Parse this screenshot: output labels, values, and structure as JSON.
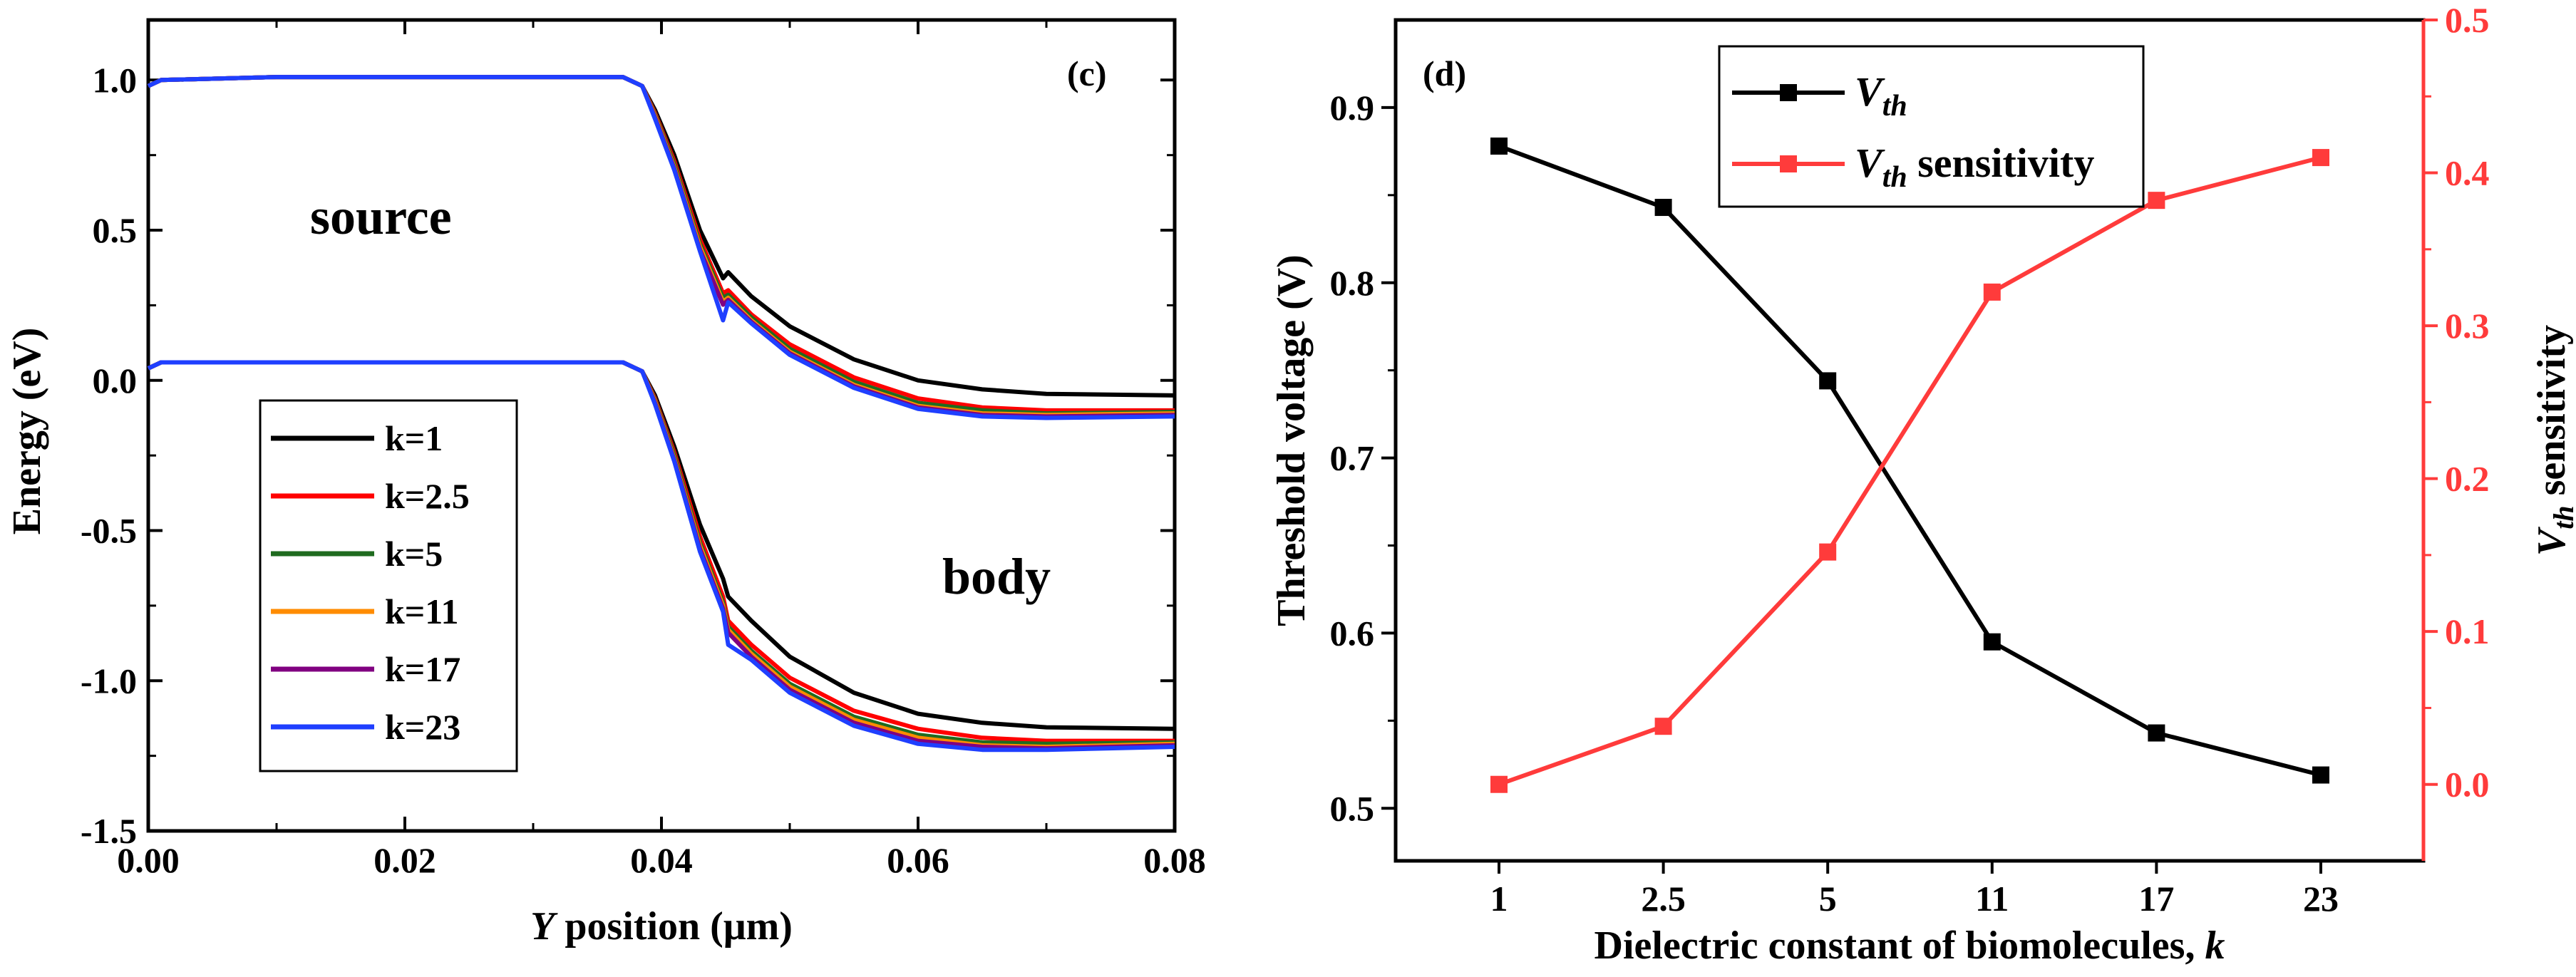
{
  "chart_data": [
    {
      "type": "line",
      "panel_label": "(c)",
      "xlabel_var": "Y",
      "xlabel_rest": " position (μm)",
      "ylabel": "Energy (eV)",
      "xlim": [
        0,
        0.08
      ],
      "ylim": [
        -1.5,
        1.2
      ],
      "x_ticks": [
        "0.00",
        "0.02",
        "0.04",
        "0.06",
        "0.08"
      ],
      "y_ticks": [
        "-1.5",
        "-1.0",
        "-0.5",
        "0.0",
        "0.5",
        "1.0"
      ],
      "annotations": {
        "source": "source",
        "body": "body"
      },
      "legend_location": "center-left",
      "series": [
        {
          "name": "k=1",
          "color": "#000000",
          "conduction": [
            [
              0,
              0.98
            ],
            [
              0.001,
              1.0
            ],
            [
              0.01,
              1.01
            ],
            [
              0.037,
              1.01
            ],
            [
              0.0385,
              0.98
            ],
            [
              0.0395,
              0.9
            ],
            [
              0.041,
              0.75
            ],
            [
              0.043,
              0.5
            ],
            [
              0.0448,
              0.34
            ],
            [
              0.0452,
              0.36
            ],
            [
              0.047,
              0.28
            ],
            [
              0.05,
              0.18
            ],
            [
              0.055,
              0.07
            ],
            [
              0.06,
              0.0
            ],
            [
              0.065,
              -0.03
            ],
            [
              0.07,
              -0.045
            ],
            [
              0.08,
              -0.05
            ]
          ],
          "valence": [
            [
              0,
              0.04
            ],
            [
              0.001,
              0.06
            ],
            [
              0.01,
              0.06
            ],
            [
              0.037,
              0.06
            ],
            [
              0.0385,
              0.03
            ],
            [
              0.0395,
              -0.05
            ],
            [
              0.041,
              -0.22
            ],
            [
              0.043,
              -0.48
            ],
            [
              0.0448,
              -0.66
            ],
            [
              0.0452,
              -0.72
            ],
            [
              0.047,
              -0.8
            ],
            [
              0.05,
              -0.92
            ],
            [
              0.055,
              -1.04
            ],
            [
              0.06,
              -1.11
            ],
            [
              0.065,
              -1.14
            ],
            [
              0.07,
              -1.155
            ],
            [
              0.08,
              -1.16
            ]
          ]
        },
        {
          "name": "k=2.5",
          "color": "#ff0000",
          "conduction": [
            [
              0,
              0.98
            ],
            [
              0.001,
              1.0
            ],
            [
              0.01,
              1.01
            ],
            [
              0.037,
              1.01
            ],
            [
              0.0385,
              0.98
            ],
            [
              0.0395,
              0.89
            ],
            [
              0.041,
              0.73
            ],
            [
              0.043,
              0.47
            ],
            [
              0.0448,
              0.29
            ],
            [
              0.0452,
              0.3
            ],
            [
              0.047,
              0.22
            ],
            [
              0.05,
              0.12
            ],
            [
              0.055,
              0.01
            ],
            [
              0.06,
              -0.06
            ],
            [
              0.065,
              -0.09
            ],
            [
              0.07,
              -0.1
            ],
            [
              0.08,
              -0.1
            ]
          ],
          "valence": [
            [
              0,
              0.04
            ],
            [
              0.001,
              0.06
            ],
            [
              0.01,
              0.06
            ],
            [
              0.037,
              0.06
            ],
            [
              0.0385,
              0.03
            ],
            [
              0.0395,
              -0.06
            ],
            [
              0.041,
              -0.24
            ],
            [
              0.043,
              -0.52
            ],
            [
              0.0448,
              -0.72
            ],
            [
              0.0452,
              -0.8
            ],
            [
              0.047,
              -0.88
            ],
            [
              0.05,
              -0.99
            ],
            [
              0.055,
              -1.1
            ],
            [
              0.06,
              -1.16
            ],
            [
              0.065,
              -1.19
            ],
            [
              0.07,
              -1.2
            ],
            [
              0.08,
              -1.2
            ]
          ]
        },
        {
          "name": "k=5",
          "color": "#1f6b1f",
          "conduction": [
            [
              0,
              0.98
            ],
            [
              0.001,
              1.0
            ],
            [
              0.01,
              1.01
            ],
            [
              0.037,
              1.01
            ],
            [
              0.0385,
              0.98
            ],
            [
              0.0395,
              0.885
            ],
            [
              0.041,
              0.72
            ],
            [
              0.043,
              0.455
            ],
            [
              0.0448,
              0.275
            ],
            [
              0.0452,
              0.285
            ],
            [
              0.047,
              0.21
            ],
            [
              0.05,
              0.105
            ],
            [
              0.055,
              -0.005
            ],
            [
              0.06,
              -0.075
            ],
            [
              0.065,
              -0.1
            ],
            [
              0.07,
              -0.11
            ],
            [
              0.08,
              -0.105
            ]
          ],
          "valence": [
            [
              0,
              0.04
            ],
            [
              0.001,
              0.06
            ],
            [
              0.01,
              0.06
            ],
            [
              0.037,
              0.06
            ],
            [
              0.0385,
              0.03
            ],
            [
              0.0395,
              -0.065
            ],
            [
              0.041,
              -0.25
            ],
            [
              0.043,
              -0.54
            ],
            [
              0.0448,
              -0.74
            ],
            [
              0.0452,
              -0.82
            ],
            [
              0.047,
              -0.9
            ],
            [
              0.05,
              -1.01
            ],
            [
              0.055,
              -1.12
            ],
            [
              0.06,
              -1.18
            ],
            [
              0.065,
              -1.205
            ],
            [
              0.07,
              -1.21
            ],
            [
              0.08,
              -1.205
            ]
          ]
        },
        {
          "name": "k=11",
          "color": "#ff8c00",
          "conduction": [
            [
              0,
              0.98
            ],
            [
              0.001,
              1.0
            ],
            [
              0.01,
              1.01
            ],
            [
              0.037,
              1.01
            ],
            [
              0.0385,
              0.98
            ],
            [
              0.0395,
              0.88
            ],
            [
              0.041,
              0.71
            ],
            [
              0.043,
              0.445
            ],
            [
              0.0448,
              0.262
            ],
            [
              0.0452,
              0.275
            ],
            [
              0.047,
              0.2
            ],
            [
              0.05,
              0.095
            ],
            [
              0.055,
              -0.015
            ],
            [
              0.06,
              -0.085
            ],
            [
              0.065,
              -0.11
            ],
            [
              0.07,
              -0.115
            ],
            [
              0.08,
              -0.11
            ]
          ],
          "valence": [
            [
              0,
              0.04
            ],
            [
              0.001,
              0.06
            ],
            [
              0.01,
              0.06
            ],
            [
              0.037,
              0.06
            ],
            [
              0.0385,
              0.03
            ],
            [
              0.0395,
              -0.07
            ],
            [
              0.041,
              -0.26
            ],
            [
              0.043,
              -0.55
            ],
            [
              0.0448,
              -0.75
            ],
            [
              0.0452,
              -0.83
            ],
            [
              0.047,
              -0.91
            ],
            [
              0.05,
              -1.02
            ],
            [
              0.055,
              -1.13
            ],
            [
              0.06,
              -1.19
            ],
            [
              0.065,
              -1.215
            ],
            [
              0.07,
              -1.22
            ],
            [
              0.08,
              -1.21
            ]
          ]
        },
        {
          "name": "k=17",
          "color": "#800080",
          "conduction": [
            [
              0,
              0.98
            ],
            [
              0.001,
              1.0
            ],
            [
              0.01,
              1.01
            ],
            [
              0.037,
              1.01
            ],
            [
              0.0385,
              0.98
            ],
            [
              0.0395,
              0.875
            ],
            [
              0.041,
              0.705
            ],
            [
              0.043,
              0.435
            ],
            [
              0.0448,
              0.252
            ],
            [
              0.0452,
              0.268
            ],
            [
              0.047,
              0.195
            ],
            [
              0.05,
              0.09
            ],
            [
              0.055,
              -0.02
            ],
            [
              0.06,
              -0.09
            ],
            [
              0.065,
              -0.115
            ],
            [
              0.07,
              -0.12
            ],
            [
              0.08,
              -0.115
            ]
          ],
          "valence": [
            [
              0,
              0.04
            ],
            [
              0.001,
              0.06
            ],
            [
              0.01,
              0.06
            ],
            [
              0.037,
              0.06
            ],
            [
              0.0385,
              0.03
            ],
            [
              0.0395,
              -0.075
            ],
            [
              0.041,
              -0.265
            ],
            [
              0.043,
              -0.56
            ],
            [
              0.0448,
              -0.76
            ],
            [
              0.0452,
              -0.84
            ],
            [
              0.047,
              -0.92
            ],
            [
              0.05,
              -1.03
            ],
            [
              0.055,
              -1.14
            ],
            [
              0.06,
              -1.2
            ],
            [
              0.065,
              -1.22
            ],
            [
              0.07,
              -1.225
            ],
            [
              0.08,
              -1.215
            ]
          ]
        },
        {
          "name": "k=23",
          "color": "#1f3fff",
          "conduction": [
            [
              0,
              0.98
            ],
            [
              0.001,
              1.0
            ],
            [
              0.01,
              1.01
            ],
            [
              0.037,
              1.01
            ],
            [
              0.0385,
              0.98
            ],
            [
              0.0395,
              0.87
            ],
            [
              0.041,
              0.7
            ],
            [
              0.043,
              0.43
            ],
            [
              0.0448,
              0.2
            ],
            [
              0.0452,
              0.26
            ],
            [
              0.047,
              0.19
            ],
            [
              0.05,
              0.085
            ],
            [
              0.055,
              -0.025
            ],
            [
              0.06,
              -0.095
            ],
            [
              0.065,
              -0.12
            ],
            [
              0.07,
              -0.125
            ],
            [
              0.08,
              -0.12
            ]
          ],
          "valence": [
            [
              0,
              0.04
            ],
            [
              0.001,
              0.06
            ],
            [
              0.01,
              0.06
            ],
            [
              0.037,
              0.06
            ],
            [
              0.0385,
              0.03
            ],
            [
              0.0395,
              -0.08
            ],
            [
              0.041,
              -0.27
            ],
            [
              0.043,
              -0.57
            ],
            [
              0.0448,
              -0.77
            ],
            [
              0.0452,
              -0.88
            ],
            [
              0.047,
              -0.93
            ],
            [
              0.05,
              -1.04
            ],
            [
              0.055,
              -1.15
            ],
            [
              0.06,
              -1.21
            ],
            [
              0.065,
              -1.23
            ],
            [
              0.07,
              -1.23
            ],
            [
              0.08,
              -1.22
            ]
          ]
        }
      ]
    },
    {
      "type": "line",
      "panel_label": "(d)",
      "xlabel_main": "Dielectric constant of biomolecules, ",
      "xlabel_var": "k",
      "ylabel_left": "Threshold voltage (V)",
      "ylabel_right_var": "V",
      "ylabel_right_sub": "th",
      "ylabel_right_rest": " sensitivity",
      "categories": [
        "1",
        "2.5",
        "5",
        "11",
        "17",
        "23"
      ],
      "ylim_left": [
        0.47,
        0.95
      ],
      "ylim_right": [
        -0.05,
        0.5
      ],
      "y_ticks_left": [
        "0.5",
        "0.6",
        "0.7",
        "0.8",
        "0.9"
      ],
      "y_ticks_right": [
        "0.0",
        "0.1",
        "0.2",
        "0.3",
        "0.4",
        "0.5"
      ],
      "legend_location": "top-center",
      "series": [
        {
          "name_var": "V",
          "name_sub": "th",
          "name_rest": "",
          "axis": "left",
          "color": "#000000",
          "values": [
            0.878,
            0.843,
            0.744,
            0.595,
            0.543,
            0.519
          ]
        },
        {
          "name_var": "V",
          "name_sub": "th",
          "name_rest": " sensitivity",
          "axis": "right",
          "color": "#ff3b3b",
          "values": [
            0.0,
            0.038,
            0.152,
            0.322,
            0.382,
            0.41
          ]
        }
      ]
    }
  ]
}
